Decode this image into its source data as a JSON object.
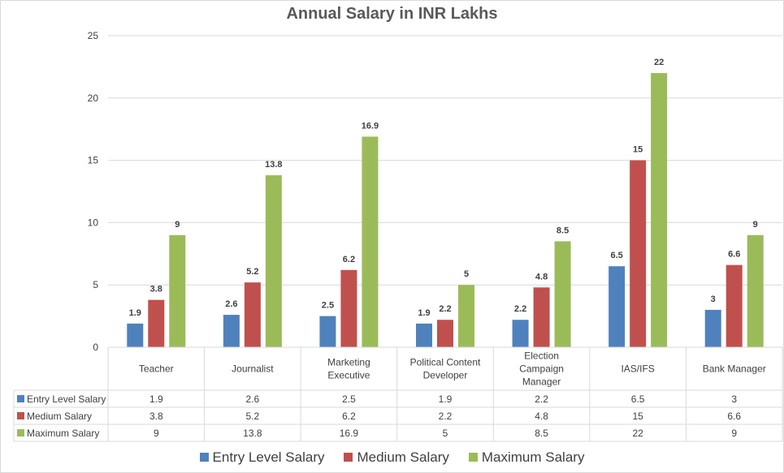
{
  "chart_data": {
    "type": "bar",
    "title": "Annual Salary in INR Lakhs",
    "xlabel": "",
    "ylabel": "",
    "ylim": [
      0,
      25
    ],
    "yticks": [
      0,
      5,
      10,
      15,
      20,
      25
    ],
    "grid": true,
    "legend_position": "bottom",
    "categories": [
      [
        "Teacher"
      ],
      [
        "Journalist"
      ],
      [
        "Marketing",
        "Executive"
      ],
      [
        "Political Content",
        "Developer"
      ],
      [
        "Election",
        "Campaign",
        "Manager"
      ],
      [
        "IAS/IFS"
      ],
      [
        "Bank Manager"
      ]
    ],
    "series": [
      {
        "name": "Entry Level Salary",
        "color": "#4f81bd",
        "values": [
          1.9,
          2.6,
          2.5,
          1.9,
          2.2,
          6.5,
          3
        ]
      },
      {
        "name": "Medium Salary",
        "color": "#c0504d",
        "values": [
          3.8,
          5.2,
          6.2,
          2.2,
          4.8,
          15,
          6.6
        ]
      },
      {
        "name": "Maximum Salary",
        "color": "#9bbb59",
        "values": [
          9,
          13.8,
          16.9,
          5,
          8.5,
          22,
          9
        ]
      }
    ],
    "data_table": true
  }
}
